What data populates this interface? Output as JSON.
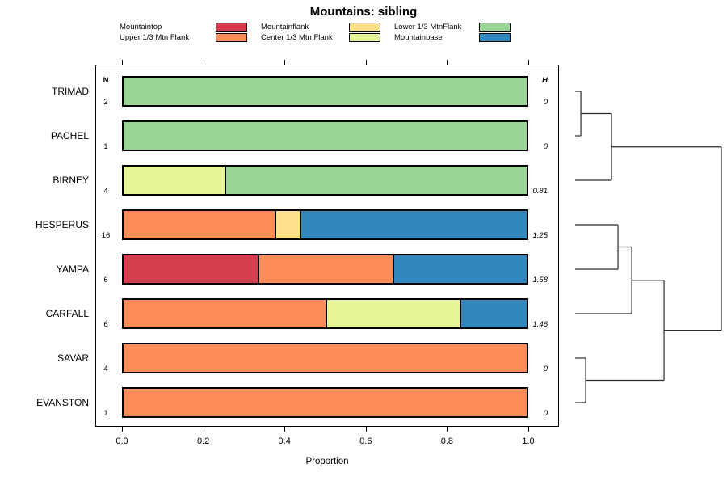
{
  "title": "Mountains: sibling",
  "legend": {
    "columns": [
      [
        {
          "label": "Mountaintop",
          "color": "#D53E4F"
        },
        {
          "label": "Upper 1/3 Mtn Flank",
          "color": "#FC8D59"
        }
      ],
      [
        {
          "label": "Mountainflank",
          "color": "#FEE08B"
        },
        {
          "label": "Center 1/3 Mtn Flank",
          "color": "#E6F598"
        }
      ],
      [
        {
          "label": "Lower 1/3 MtnFlank",
          "color": "#99D594"
        },
        {
          "label": "Mountainbase",
          "color": "#3288BD"
        }
      ]
    ]
  },
  "chart_data": {
    "type": "bar",
    "orientation": "horizontal-stacked",
    "title": "Mountains: sibling",
    "xlabel": "Proportion",
    "xlim": [
      0,
      1
    ],
    "xticks": [
      {
        "label": "0.0",
        "value": 0.0
      },
      {
        "label": "0.2",
        "value": 0.2
      },
      {
        "label": "0.4",
        "value": 0.4
      },
      {
        "label": "0.6",
        "value": 0.6
      },
      {
        "label": "0.8",
        "value": 0.8
      },
      {
        "label": "1.0",
        "value": 1.0
      }
    ],
    "n_header": "N",
    "h_header": "H",
    "colors": {
      "Mountaintop": "#D53E4F",
      "Upper 1/3 Mtn Flank": "#FC8D59",
      "Mountainflank": "#FEE08B",
      "Center 1/3 Mtn Flank": "#E6F598",
      "Lower 1/3 MtnFlank": "#99D594",
      "Mountainbase": "#3288BD"
    },
    "rows": [
      {
        "label": "TRIMAD",
        "n": "2",
        "h": "0",
        "segments": [
          {
            "category": "Lower 1/3 MtnFlank",
            "value": 1.0
          }
        ]
      },
      {
        "label": "PACHEL",
        "n": "1",
        "h": "0",
        "segments": [
          {
            "category": "Lower 1/3 MtnFlank",
            "value": 1.0
          }
        ]
      },
      {
        "label": "BIRNEY",
        "n": "4",
        "h": "0.81",
        "segments": [
          {
            "category": "Center 1/3 Mtn Flank",
            "value": 0.25
          },
          {
            "category": "Lower 1/3 MtnFlank",
            "value": 0.75
          }
        ]
      },
      {
        "label": "HESPERUS",
        "n": "16",
        "h": "1.25",
        "segments": [
          {
            "category": "Upper 1/3 Mtn Flank",
            "value": 0.375
          },
          {
            "category": "Mountainflank",
            "value": 0.0625
          },
          {
            "category": "Mountainbase",
            "value": 0.5625
          }
        ]
      },
      {
        "label": "YAMPA",
        "n": "6",
        "h": "1.58",
        "segments": [
          {
            "category": "Mountaintop",
            "value": 0.3333
          },
          {
            "category": "Upper 1/3 Mtn Flank",
            "value": 0.3334
          },
          {
            "category": "Mountainbase",
            "value": 0.3333
          }
        ]
      },
      {
        "label": "CARFALL",
        "n": "6",
        "h": "1.46",
        "segments": [
          {
            "category": "Upper 1/3 Mtn Flank",
            "value": 0.5
          },
          {
            "category": "Center 1/3 Mtn Flank",
            "value": 0.3333
          },
          {
            "category": "Mountainbase",
            "value": 0.1667
          }
        ]
      },
      {
        "label": "SAVAR",
        "n": "4",
        "h": "0",
        "segments": [
          {
            "category": "Upper 1/3 Mtn Flank",
            "value": 1.0
          }
        ]
      },
      {
        "label": "EVANSTON",
        "n": "1",
        "h": "0",
        "segments": [
          {
            "category": "Upper 1/3 Mtn Flank",
            "value": 1.0
          }
        ]
      }
    ],
    "dendrogram": {
      "leaves": [
        "TRIMAD",
        "PACHEL",
        "BIRNEY",
        "HESPERUS",
        "YAMPA",
        "CARFALL",
        "SAVAR",
        "EVANSTON"
      ],
      "merges": [
        {
          "a": "L:TRIMAD",
          "b": "L:PACHEL",
          "height": 0.039
        },
        {
          "a": "M:0",
          "b": "L:BIRNEY",
          "height": 0.249
        },
        {
          "a": "L:HESPERUS",
          "b": "L:YAMPA",
          "height": 0.293
        },
        {
          "a": "M:2",
          "b": "L:CARFALL",
          "height": 0.387
        },
        {
          "a": "L:SAVAR",
          "b": "L:EVANSTON",
          "height": 0.072
        },
        {
          "a": "M:3",
          "b": "M:4",
          "height": 0.608
        },
        {
          "a": "M:1",
          "b": "M:5",
          "height": 1.0
        }
      ]
    }
  }
}
